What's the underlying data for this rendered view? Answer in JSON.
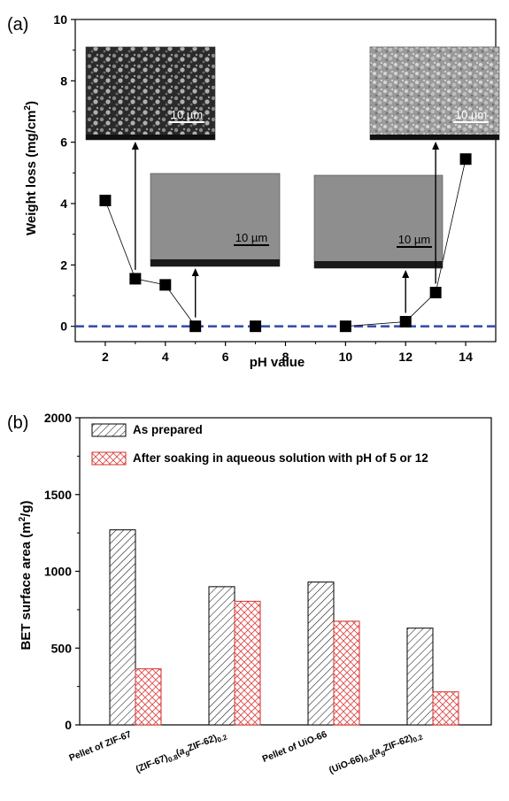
{
  "chart_data": [
    {
      "panel": "(a)",
      "type": "scatter",
      "xlabel": "pH value",
      "ylabel": "Weight loss (mg/cm2)",
      "xlim": [
        1,
        15
      ],
      "ylim": [
        -0.5,
        10
      ],
      "xticks": [
        2,
        4,
        6,
        8,
        10,
        12,
        14
      ],
      "yticks": [
        0,
        2,
        4,
        6,
        8,
        10
      ],
      "points": [
        {
          "x": 2,
          "y": 4.1
        },
        {
          "x": 3,
          "y": 1.55
        },
        {
          "x": 4,
          "y": 1.35
        },
        {
          "x": 5,
          "y": 0.0
        },
        {
          "x": 7,
          "y": 0.0
        },
        {
          "x": 10,
          "y": 0.0
        },
        {
          "x": 12,
          "y": 0.15
        },
        {
          "x": 13,
          "y": 1.1
        },
        {
          "x": 14,
          "y": 5.45
        }
      ],
      "reference_line": {
        "y": 0,
        "style": "dashed",
        "color": "#3a4fb0"
      },
      "insets": [
        {
          "scale_label": "10 µm",
          "style": "dark-porous",
          "points_to_x": 3
        },
        {
          "scale_label": "10 µm",
          "style": "smooth",
          "points_to_x": 5
        },
        {
          "scale_label": "10 µm",
          "style": "smooth",
          "points_to_x": 12
        },
        {
          "scale_label": "10 µm",
          "style": "rough",
          "points_to_x": 13
        }
      ]
    },
    {
      "panel": "(b)",
      "type": "bar",
      "ylabel": "BET surface area (m2/g)",
      "ylim": [
        0,
        2000
      ],
      "yticks": [
        0,
        500,
        1000,
        1500,
        2000
      ],
      "categories": [
        "Pellet of ZIF-67",
        "(ZIF-67)0.8(agZIF-62)0.2",
        "Pellet of UiO-66",
        "(UiO-66)0.8(agZIF-62)0.2"
      ],
      "series": [
        {
          "name": "As prepared",
          "values": [
            1270,
            900,
            930,
            630
          ],
          "pattern": "diagonal-hatch",
          "color": "#000000"
        },
        {
          "name": "After soaking in aqueous solution with pH of 5 or 12",
          "values": [
            365,
            805,
            675,
            215
          ],
          "pattern": "cross-hatch",
          "color": "#e03c3c"
        }
      ],
      "legend_position": "top-left"
    }
  ]
}
